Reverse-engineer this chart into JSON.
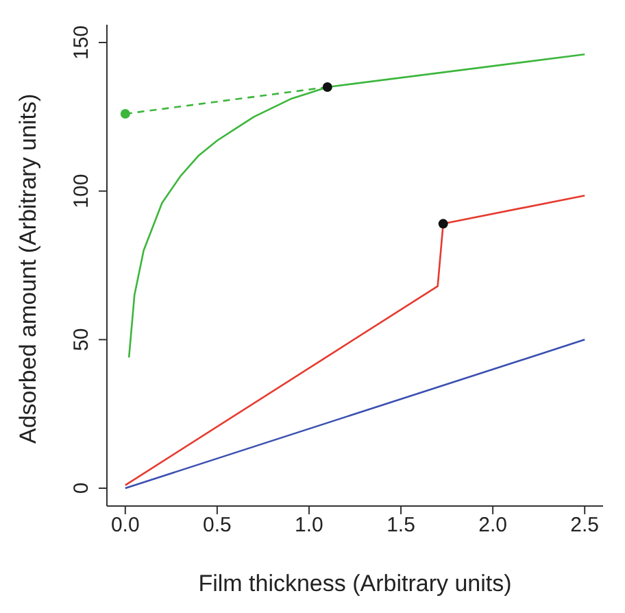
{
  "chart_data": {
    "type": "line",
    "xlabel": "Film thickness (Arbitrary units)",
    "ylabel": "Adsorbed amount (Arbitrary units)",
    "xlim": [
      -0.1,
      2.6
    ],
    "xticks": [
      {
        "value": 0,
        "label": "0.0"
      },
      0.5,
      {
        "value": 1,
        "label": "1.0"
      },
      1.5,
      {
        "value": 2,
        "label": "2.0"
      },
      2.5
    ],
    "ylim": [
      -6,
      156
    ],
    "yticks": [
      0,
      50,
      100,
      150
    ],
    "marker": "none",
    "series": [
      {
        "color": "#3a4fb0",
        "x": [
          0,
          2.5
        ],
        "values": [
          0,
          50
        ]
      },
      {
        "color": "#e63a2e",
        "x": [
          0,
          1.7,
          1.73,
          2.5
        ],
        "values": [
          1,
          68,
          89,
          98.5
        ]
      },
      {
        "color": "#3cb63c",
        "x": [
          0.02,
          0.05,
          0.1,
          0.2,
          0.3,
          0.4,
          0.5,
          0.6,
          0.7,
          0.8,
          0.9,
          1.0,
          1.1,
          2.5
        ],
        "values": [
          44,
          65,
          80,
          96,
          105,
          112,
          117,
          121,
          125,
          128,
          131,
          133,
          135,
          146
        ]
      },
      {
        "color": "#3cb63c",
        "line_style": "dashed",
        "x": [
          0,
          1.1
        ],
        "values": [
          126,
          135
        ]
      },
      {
        "type": "scatter",
        "color": "#3cb63c",
        "marker": "circle",
        "x": [
          0
        ],
        "values": [
          126
        ]
      },
      {
        "type": "scatter",
        "color": "#111111",
        "marker": "circle",
        "x": [
          1.1,
          1.73
        ],
        "values": [
          135,
          89
        ]
      }
    ]
  }
}
